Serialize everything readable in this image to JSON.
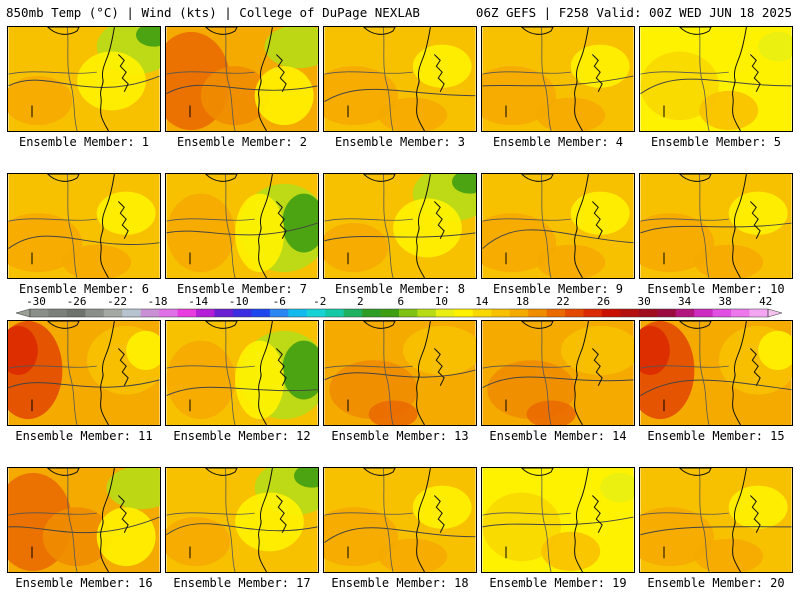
{
  "header": {
    "left": "850mb Temp (°C) | Wind (kts) | College of DuPage NEXLAB",
    "right": "06Z GEFS | F258 Valid: 00Z WED JUN 18 2025"
  },
  "panels": [
    {
      "label": "Ensemble Member: 1",
      "scheme": "green-ne"
    },
    {
      "label": "Ensemble Member: 2",
      "scheme": "hot-w-green-ne"
    },
    {
      "label": "Ensemble Member: 3",
      "scheme": "mild"
    },
    {
      "label": "Ensemble Member: 4",
      "scheme": "mild"
    },
    {
      "label": "Ensemble Member: 5",
      "scheme": "yellow"
    },
    {
      "label": "Ensemble Member: 6",
      "scheme": "mild"
    },
    {
      "label": "Ensemble Member: 7",
      "scheme": "green-e"
    },
    {
      "label": "Ensemble Member: 8",
      "scheme": "green-ne"
    },
    {
      "label": "Ensemble Member: 9",
      "scheme": "mild"
    },
    {
      "label": "Ensemble Member: 10",
      "scheme": "mild"
    },
    {
      "label": "Ensemble Member: 11",
      "scheme": "hot-w"
    },
    {
      "label": "Ensemble Member: 12",
      "scheme": "green-e"
    },
    {
      "label": "Ensemble Member: 13",
      "scheme": "warm"
    },
    {
      "label": "Ensemble Member: 14",
      "scheme": "warm"
    },
    {
      "label": "Ensemble Member: 15",
      "scheme": "hot-w"
    },
    {
      "label": "Ensemble Member: 16",
      "scheme": "hot-w-green-ne"
    },
    {
      "label": "Ensemble Member: 17",
      "scheme": "green-ne"
    },
    {
      "label": "Ensemble Member: 18",
      "scheme": "mild"
    },
    {
      "label": "Ensemble Member: 19",
      "scheme": "yellow"
    },
    {
      "label": "Ensemble Member: 20",
      "scheme": "mild"
    }
  ],
  "colorbar": {
    "tick_labels": [
      "-30",
      "-26",
      "-22",
      "-18",
      "-14",
      "-10",
      "-6",
      "-2",
      "2",
      "6",
      "10",
      "14",
      "18",
      "22",
      "26",
      "30",
      "34",
      "38",
      "42"
    ],
    "colors": [
      "#8a9089",
      "#7c807a",
      "#6e736d",
      "#8b8f8a",
      "#a5a9a4",
      "#b7c3cf",
      "#c990d6",
      "#e070e6",
      "#e83be0",
      "#b21fd7",
      "#6a1fd2",
      "#3a2ee0",
      "#1e46ef",
      "#2b86f2",
      "#14b9ee",
      "#18d3d5",
      "#15c8a6",
      "#1eb15f",
      "#2e9c25",
      "#3f9d12",
      "#7fc214",
      "#b7dc17",
      "#e9ef12",
      "#fff200",
      "#f8d800",
      "#f8c100",
      "#f5aa00",
      "#f08c00",
      "#ea6a00",
      "#e34a00",
      "#dc2a00",
      "#c91100",
      "#b40f0f",
      "#a00d1e",
      "#9b0c3e",
      "#b4147d",
      "#cc2ac0",
      "#e04ee2",
      "#ec78ec",
      "#f5a6f2"
    ]
  }
}
